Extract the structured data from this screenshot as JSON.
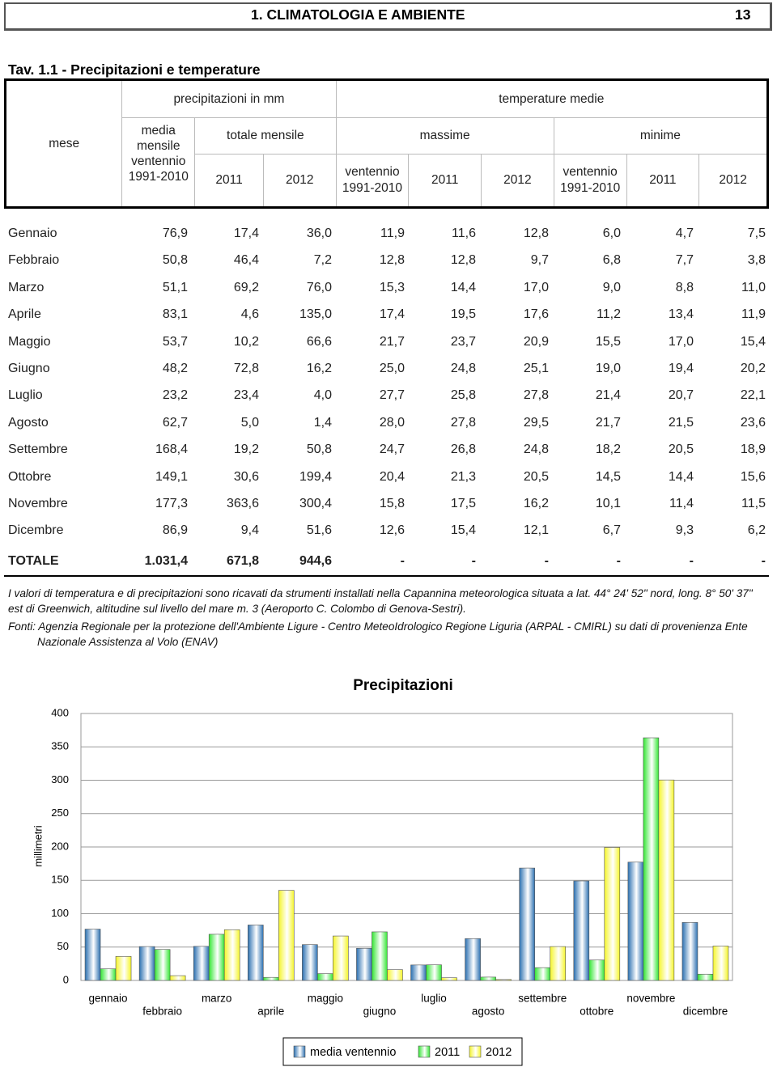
{
  "header": {
    "section": "1. CLIMATOLOGIA E AMBIENTE",
    "page": "13"
  },
  "table": {
    "title": "Tav. 1.1 - Precipitazioni e temperature",
    "mese": "mese",
    "group_headers": [
      "precipitazioni in mm",
      "temperature medie"
    ],
    "media_header": "media mensile ventennio 1991-2010",
    "subgroup_headers": [
      "totale mensile",
      "massime",
      "minime"
    ],
    "column_headers": [
      "2011",
      "2012",
      "ventennio 1991-2010",
      "2011",
      "2012",
      "ventennio 1991-2010",
      "2011",
      "2012"
    ],
    "rows": [
      [
        "Gennaio",
        "76,9",
        "17,4",
        "36,0",
        "11,9",
        "11,6",
        "12,8",
        "6,0",
        "4,7",
        "7,5"
      ],
      [
        "Febbraio",
        "50,8",
        "46,4",
        "7,2",
        "12,8",
        "12,8",
        "9,7",
        "6,8",
        "7,7",
        "3,8"
      ],
      [
        "Marzo",
        "51,1",
        "69,2",
        "76,0",
        "15,3",
        "14,4",
        "17,0",
        "9,0",
        "8,8",
        "11,0"
      ],
      [
        "Aprile",
        "83,1",
        "4,6",
        "135,0",
        "17,4",
        "19,5",
        "17,6",
        "11,2",
        "13,4",
        "11,9"
      ],
      [
        "Maggio",
        "53,7",
        "10,2",
        "66,6",
        "21,7",
        "23,7",
        "20,9",
        "15,5",
        "17,0",
        "15,4"
      ],
      [
        "Giugno",
        "48,2",
        "72,8",
        "16,2",
        "25,0",
        "24,8",
        "25,1",
        "19,0",
        "19,4",
        "20,2"
      ],
      [
        "Luglio",
        "23,2",
        "23,4",
        "4,0",
        "27,7",
        "25,8",
        "27,8",
        "21,4",
        "20,7",
        "22,1"
      ],
      [
        "Agosto",
        "62,7",
        "5,0",
        "1,4",
        "28,0",
        "27,8",
        "29,5",
        "21,7",
        "21,5",
        "23,6"
      ],
      [
        "Settembre",
        "168,4",
        "19,2",
        "50,8",
        "24,7",
        "26,8",
        "24,8",
        "18,2",
        "20,5",
        "18,9"
      ],
      [
        "Ottobre",
        "149,1",
        "30,6",
        "199,4",
        "20,4",
        "21,3",
        "20,5",
        "14,5",
        "14,4",
        "15,6"
      ],
      [
        "Novembre",
        "177,3",
        "363,6",
        "300,4",
        "15,8",
        "17,5",
        "16,2",
        "10,1",
        "11,4",
        "11,5"
      ],
      [
        "Dicembre",
        "86,9",
        "9,4",
        "51,6",
        "12,6",
        "15,4",
        "12,1",
        "6,7",
        "9,3",
        "6,2"
      ]
    ],
    "total": [
      "TOTALE",
      "1.031,4",
      "671,8",
      "944,6",
      "-",
      "-",
      "-",
      "-",
      "-",
      "-"
    ]
  },
  "notes": [
    "I valori di temperatura e di precipitazioni sono ricavati da strumenti installati nella Capannina meteorologica situata a lat. 44° 24' 52\" nord, long. 8° 50' 37\" est di Greenwich, altitudine sul livello del mare m. 3 (Aeroporto C. Colombo di Genova-Sestri).",
    "Fonti: Agenzia Regionale per la protezione dell'Ambiente Ligure - Centro MeteoIdrologico Regione Liguria (ARPAL - CMIRL) su dati di provenienza Ente Nazionale Assistenza al Volo (ENAV)"
  ],
  "chart_data": {
    "type": "bar",
    "title": "Precipitazioni",
    "y_label": "millimetri",
    "categories": [
      "gennaio",
      "febbraio",
      "marzo",
      "aprile",
      "maggio",
      "giugno",
      "luglio",
      "agosto",
      "settembre",
      "ottobre",
      "novembre",
      "dicembre"
    ],
    "series": [
      {
        "name": "media ventennio",
        "color": "#2a6fb0",
        "values": [
          76.9,
          50.8,
          51.1,
          83.1,
          53.7,
          48.2,
          23.2,
          62.7,
          168.4,
          149.1,
          177.3,
          86.9
        ]
      },
      {
        "name": "2011",
        "color": "#33e633",
        "values": [
          17.4,
          46.4,
          69.2,
          4.6,
          10.2,
          72.8,
          23.4,
          5.0,
          19.2,
          30.6,
          363.6,
          9.4
        ]
      },
      {
        "name": "2012",
        "color": "#f5f52a",
        "values": [
          36.0,
          7.2,
          76.0,
          135.0,
          66.6,
          16.2,
          4.0,
          1.4,
          50.8,
          199.4,
          300.4,
          51.6
        ]
      }
    ],
    "ylim": [
      0,
      400
    ],
    "yticks": [
      0,
      50,
      100,
      150,
      200,
      250,
      300,
      350,
      400
    ],
    "grid": true,
    "legend": "bottom"
  }
}
